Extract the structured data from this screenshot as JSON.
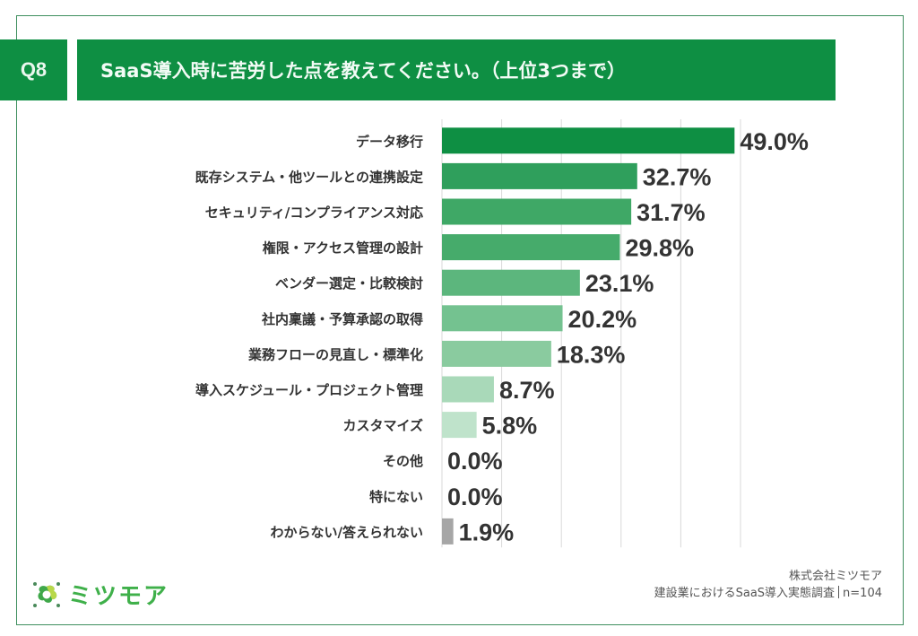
{
  "header": {
    "question_number": "Q8",
    "question_text": "SaaS導入時に苦労した点を教えてください。（上位3つまで）"
  },
  "chart_data": {
    "type": "bar",
    "orientation": "horizontal",
    "title": "SaaS導入時に苦労した点を教えてください。（上位3つまで）",
    "xlabel": "",
    "ylabel": "",
    "unit": "%",
    "xlim": [
      0,
      50
    ],
    "grid": true,
    "grid_step": 10,
    "categories": [
      "データ移行",
      "既存システム・他ツールとの連携設定",
      "セキュリティ/コンプライアンス対応",
      "権限・アクセス管理の設計",
      "ベンダー選定・比較検討",
      "社内稟議・予算承認の取得",
      "業務フローの見直し・標準化",
      "導入スケジュール・プロジェクト管理",
      "カスタマイズ",
      "その他",
      "特にない",
      "わからない/答えられない"
    ],
    "values": [
      49.0,
      32.7,
      31.7,
      29.8,
      23.1,
      20.2,
      18.3,
      8.7,
      5.8,
      0.0,
      0.0,
      1.9
    ],
    "value_labels": [
      "49.0%",
      "32.7%",
      "31.7%",
      "29.8%",
      "23.1%",
      "20.2%",
      "18.3%",
      "8.7%",
      "5.8%",
      "0.0%",
      "0.0%",
      "1.9%"
    ],
    "colors": [
      "#0e8f43",
      "#2f9f5c",
      "#3fa866",
      "#46ab6b",
      "#5cb67d",
      "#74c290",
      "#8acb9f",
      "#a9d9b9",
      "#bfe3cb",
      "#d6eedd",
      "#d6eedd",
      "#a6a6a6"
    ]
  },
  "branding": {
    "logo_text": "ミツモア",
    "company": "株式会社ミツモア",
    "survey_name": "建設業におけるSaaS導入実態調査",
    "sample_size": "n=104"
  }
}
